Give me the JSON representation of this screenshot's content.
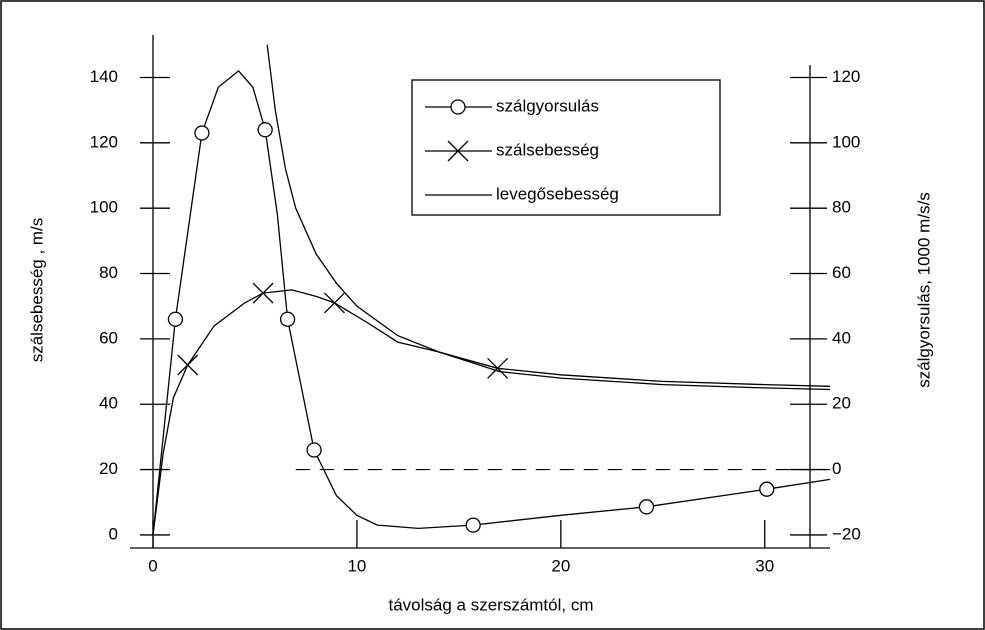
{
  "chart_data": {
    "type": "line",
    "x_label": "távolság a szerszámtól, cm",
    "y_label": "szálsebesség , m/s",
    "y2_label": "szálgyorsulás, 1000 m/s/s",
    "xlim": [
      0,
      33.2
    ],
    "xticks": [
      0,
      10,
      20,
      30
    ],
    "ylim": [
      -4,
      153
    ],
    "yticks": [
      0,
      20,
      40,
      60,
      80,
      100,
      120,
      140
    ],
    "y2lim": [
      -24,
      133
    ],
    "y2ticks": [
      {
        "value": -20,
        "label": "−20"
      },
      0,
      20,
      40,
      60,
      80,
      100,
      120
    ],
    "legend": "upper center",
    "hline": {
      "axis": "y2",
      "value": 0,
      "xmin": 7,
      "style": "dashed"
    },
    "series": [
      {
        "name": "szálgyorsulás",
        "color": "#000000",
        "marker": "circle",
        "axis": "y2",
        "x": [
          0,
          1.1,
          2.4,
          3.2,
          4.2,
          4.9,
          5.5,
          6.1,
          6.6,
          7.9,
          9,
          10,
          11,
          13,
          15.7,
          20,
          24.2,
          30.1,
          33.2
        ],
        "values": [
          -20,
          46,
          103,
          117,
          122,
          117,
          104,
          78,
          46,
          6,
          -8,
          -14,
          -17,
          -18,
          -17,
          -14,
          -11.4,
          -6,
          -3
        ],
        "markers": [
          1,
          2,
          6,
          8,
          9,
          14,
          16,
          17
        ]
      },
      {
        "name": "szálsebesség",
        "color": "#000000",
        "marker": "x",
        "axis": "y",
        "x": [
          0,
          0.5,
          1,
          1.7,
          3,
          4.5,
          5.4,
          6.8,
          8,
          8.9,
          10.5,
          12,
          14,
          16.9,
          20,
          25,
          30,
          33.2
        ],
        "values": [
          0,
          25,
          42,
          52,
          64,
          71,
          74,
          75,
          73,
          71,
          65,
          59,
          56,
          51,
          49,
          47,
          46,
          45.5
        ],
        "markers": [
          3,
          6,
          9,
          13
        ]
      },
      {
        "name": "levegősebesség",
        "color": "#000000",
        "marker": "none",
        "axis": "y",
        "x": [
          5.6,
          6,
          6.5,
          7,
          8,
          9,
          10,
          12,
          14,
          16,
          17,
          20,
          25,
          30,
          33.2
        ],
        "values": [
          150,
          130,
          112,
          100,
          86,
          77,
          70,
          61,
          56,
          52,
          50,
          48,
          46,
          45,
          44.5
        ]
      }
    ]
  }
}
